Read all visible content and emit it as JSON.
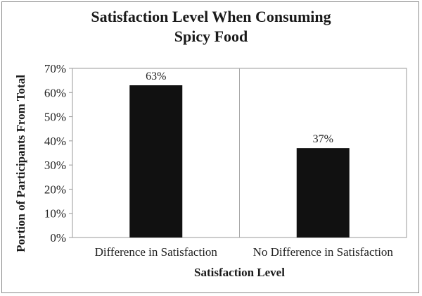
{
  "chart_data": {
    "type": "bar",
    "title_lines": [
      "Satisfaction Level When Consuming",
      "Spicy Food"
    ],
    "categories": [
      "Difference in Satisfaction",
      "No Difference in Satisfaction"
    ],
    "values": [
      63,
      37
    ],
    "data_labels": [
      "63%",
      "37%"
    ],
    "xlabel": "Satisfaction Level",
    "ylabel": "Portion of Participants From Total",
    "ylim": [
      0,
      70
    ],
    "yticks": [
      0,
      10,
      20,
      30,
      40,
      50,
      60,
      70
    ],
    "ytick_labels": [
      "0%",
      "10%",
      "20%",
      "30%",
      "40%",
      "50%",
      "60%",
      "70%"
    ],
    "grid": "vertical-category-separators",
    "legend": "none",
    "bar_color": "#111111"
  }
}
